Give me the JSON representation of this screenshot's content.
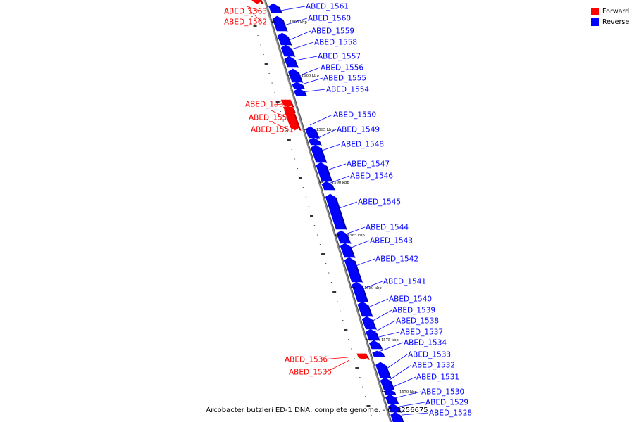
{
  "legend": {
    "forward": {
      "label": "Forward",
      "color": "#ff0000"
    },
    "reverse": {
      "label": "Reverse",
      "color": "#0000ff"
    }
  },
  "footer": "Arcobacter butzleri ED-1 DNA, complete genome. - 0..2256675",
  "axis": {
    "color": "#888888",
    "ticks": [
      {
        "label": "1605 kbp",
        "pos": 1605
      },
      {
        "label": "1600 kbp",
        "pos": 1600
      },
      {
        "label": "1595 kbp",
        "pos": 1595
      },
      {
        "label": "1590 kbp",
        "pos": 1590
      },
      {
        "label": "1585 kbp",
        "pos": 1585
      },
      {
        "label": "1580 kbp",
        "pos": 1580
      },
      {
        "label": "1575 kbp",
        "pos": 1575
      },
      {
        "label": "1570 kbp",
        "pos": 1570
      }
    ]
  },
  "genes": [
    {
      "label": "ABED_1563",
      "strand": "forward"
    },
    {
      "label": "ABED_1562",
      "strand": "forward"
    },
    {
      "label": "ABED_1561",
      "strand": "reverse"
    },
    {
      "label": "ABED_1560",
      "strand": "reverse"
    },
    {
      "label": "ABED_1559",
      "strand": "reverse"
    },
    {
      "label": "ABED_1558",
      "strand": "reverse"
    },
    {
      "label": "ABED_1557",
      "strand": "reverse"
    },
    {
      "label": "ABED_1556",
      "strand": "reverse"
    },
    {
      "label": "ABED_1555",
      "strand": "reverse"
    },
    {
      "label": "ABED_1554",
      "strand": "reverse"
    },
    {
      "label": "ABED_1553",
      "strand": "forward"
    },
    {
      "label": "ABED_1552",
      "strand": "forward"
    },
    {
      "label": "ABED_1551",
      "strand": "forward"
    },
    {
      "label": "ABED_1550",
      "strand": "reverse"
    },
    {
      "label": "ABED_1549",
      "strand": "reverse"
    },
    {
      "label": "ABED_1548",
      "strand": "reverse"
    },
    {
      "label": "ABED_1547",
      "strand": "reverse"
    },
    {
      "label": "ABED_1546",
      "strand": "reverse"
    },
    {
      "label": "ABED_1545",
      "strand": "reverse"
    },
    {
      "label": "ABED_1544",
      "strand": "reverse"
    },
    {
      "label": "ABED_1543",
      "strand": "reverse"
    },
    {
      "label": "ABED_1542",
      "strand": "reverse"
    },
    {
      "label": "ABED_1541",
      "strand": "reverse"
    },
    {
      "label": "ABED_1540",
      "strand": "reverse"
    },
    {
      "label": "ABED_1539",
      "strand": "reverse"
    },
    {
      "label": "ABED_1538",
      "strand": "reverse"
    },
    {
      "label": "ABED_1537",
      "strand": "reverse"
    },
    {
      "label": "ABED_1534",
      "strand": "reverse"
    },
    {
      "label": "ABED_1536",
      "strand": "forward"
    },
    {
      "label": "ABED_1535",
      "strand": "forward"
    },
    {
      "label": "ABED_1533",
      "strand": "reverse"
    },
    {
      "label": "ABED_1532",
      "strand": "reverse"
    },
    {
      "label": "ABED_1531",
      "strand": "reverse"
    },
    {
      "label": "ABED_1530",
      "strand": "reverse"
    },
    {
      "label": "ABED_1529",
      "strand": "reverse"
    },
    {
      "label": "ABED_1528",
      "strand": "reverse"
    }
  ]
}
